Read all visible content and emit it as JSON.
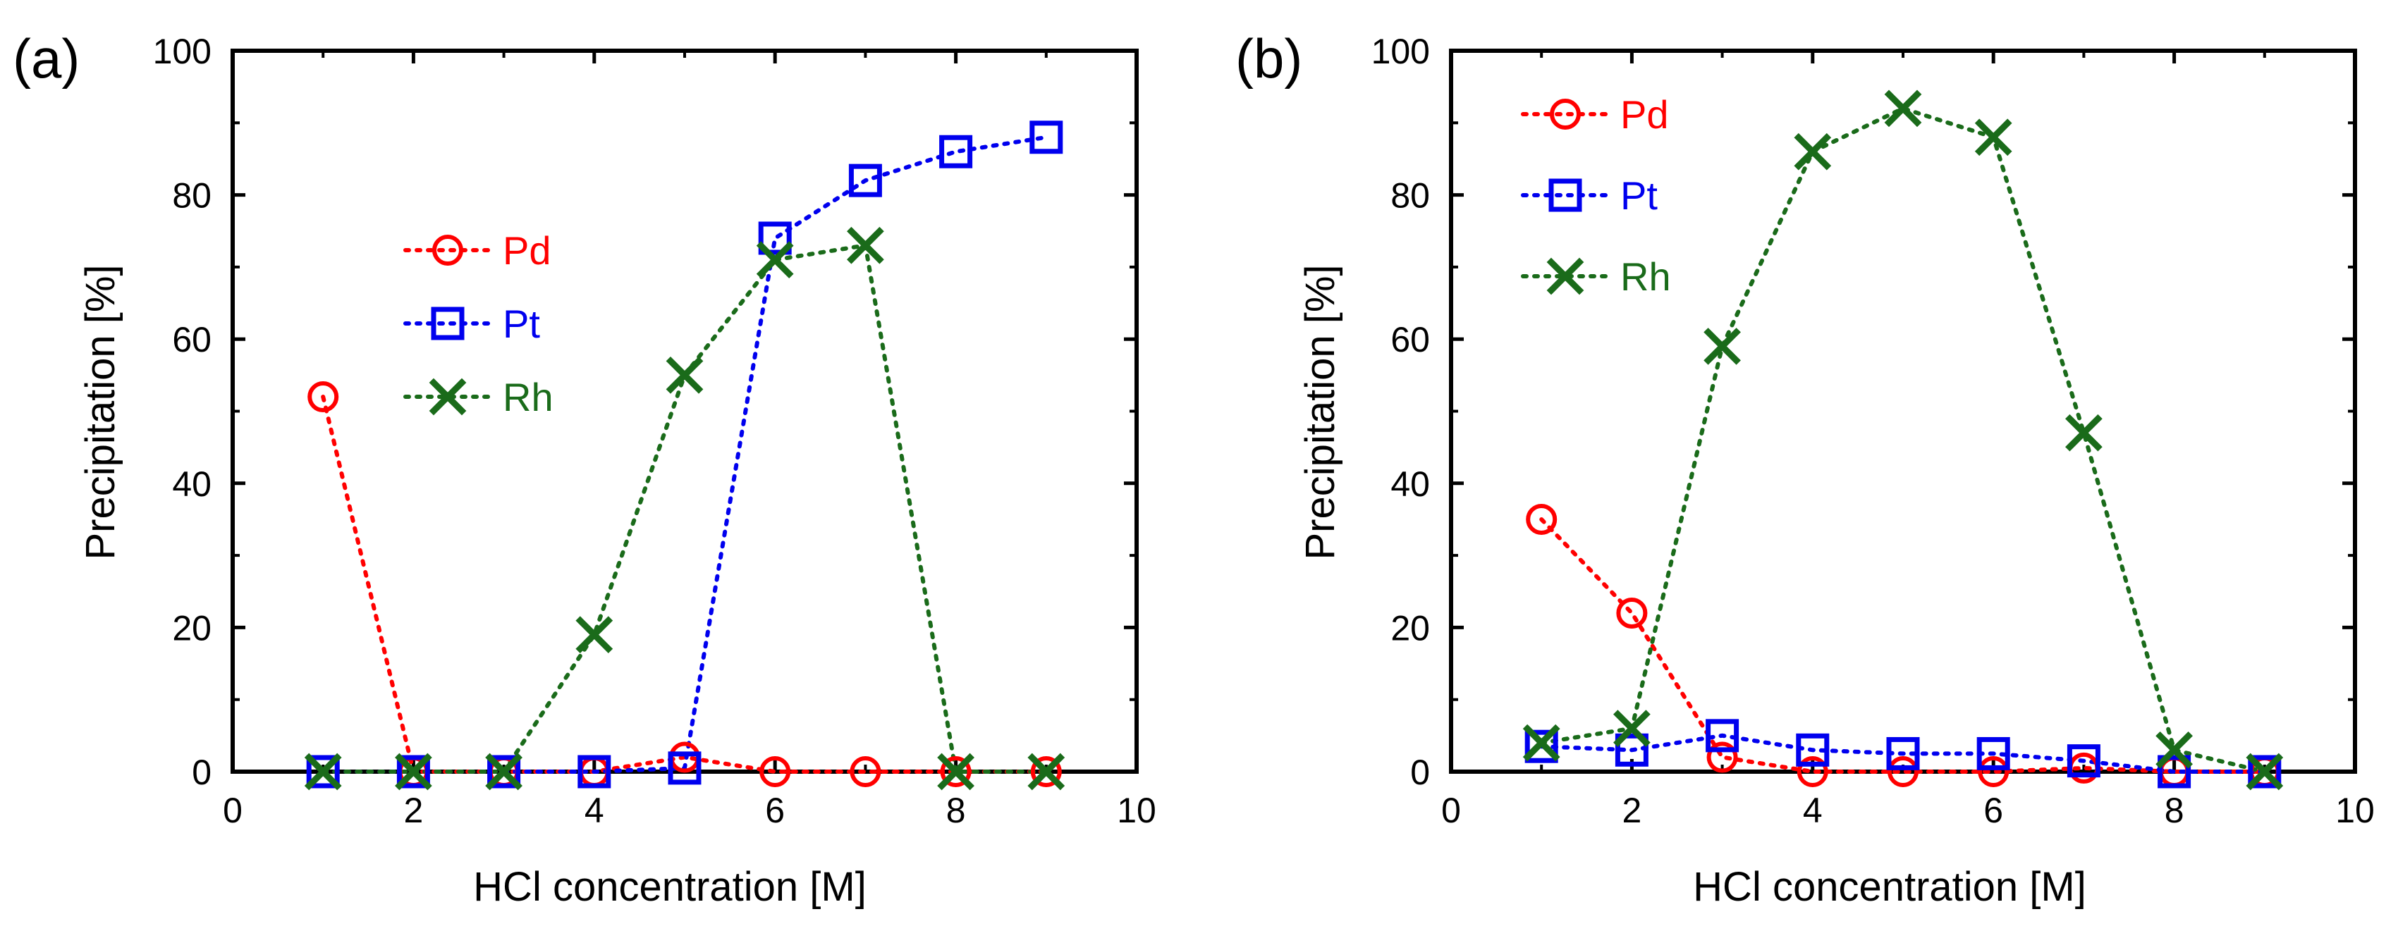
{
  "chart_data": [
    {
      "type": "line",
      "panel_label": "(a)",
      "xlabel": "HCl concentration [M]",
      "ylabel": "Precipitation [%]",
      "xlim": [
        0,
        10
      ],
      "ylim": [
        0,
        100
      ],
      "xticks": [
        0,
        2,
        4,
        6,
        8,
        10
      ],
      "yticks": [
        0,
        20,
        40,
        60,
        80,
        100
      ],
      "grid": false,
      "legend_position": "middle-left",
      "series": [
        {
          "name": "Pd",
          "color": "#ff0000",
          "marker": "circle",
          "x": [
            1,
            2,
            3,
            4,
            5,
            6,
            7,
            8,
            9
          ],
          "y": [
            52,
            0,
            0,
            0,
            2,
            0,
            0,
            0,
            0
          ]
        },
        {
          "name": "Pt",
          "color": "#0000ee",
          "marker": "square",
          "x": [
            1,
            2,
            3,
            4,
            5,
            6,
            7,
            8,
            9
          ],
          "y": [
            0,
            0,
            0,
            0,
            0.5,
            74,
            82,
            86,
            88
          ]
        },
        {
          "name": "Rh",
          "color": "#1a6b1a",
          "marker": "x",
          "x": [
            1,
            2,
            3,
            4,
            5,
            6,
            7,
            8,
            9
          ],
          "y": [
            0,
            0,
            0,
            19,
            55,
            71,
            73,
            0,
            0
          ]
        }
      ]
    },
    {
      "type": "line",
      "panel_label": "(b)",
      "xlabel": "HCl concentration [M]",
      "ylabel": "Precipitation [%]",
      "xlim": [
        0,
        10
      ],
      "ylim": [
        0,
        100
      ],
      "xticks": [
        0,
        2,
        4,
        6,
        8,
        10
      ],
      "yticks": [
        0,
        20,
        40,
        60,
        80,
        100
      ],
      "grid": false,
      "legend_position": "top-left",
      "series": [
        {
          "name": "Pd",
          "color": "#ff0000",
          "marker": "circle",
          "x": [
            1,
            2,
            3,
            4,
            5,
            6,
            7,
            8,
            9
          ],
          "y": [
            35,
            22,
            2,
            0,
            0,
            0,
            0.5,
            0,
            0
          ]
        },
        {
          "name": "Pt",
          "color": "#0000ee",
          "marker": "square",
          "x": [
            1,
            2,
            3,
            4,
            5,
            6,
            7,
            8,
            9
          ],
          "y": [
            3.5,
            3,
            5,
            3,
            2.5,
            2.5,
            1.5,
            0,
            0
          ]
        },
        {
          "name": "Rh",
          "color": "#1a6b1a",
          "marker": "x",
          "x": [
            1,
            2,
            3,
            4,
            5,
            6,
            7,
            8,
            9
          ],
          "y": [
            4,
            6,
            59,
            86,
            92,
            88,
            47,
            3,
            0
          ]
        }
      ]
    }
  ]
}
